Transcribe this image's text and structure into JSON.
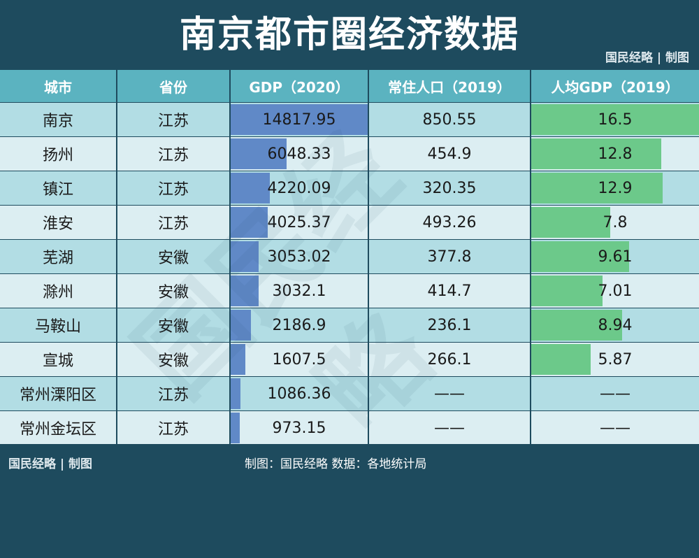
{
  "title": "南京都市圈经济数据",
  "tag": "国民经略 | 制图",
  "headers": [
    "城市",
    "省份",
    "GDP（2020）",
    "常住人口（2019）",
    "人均GDP（2019）"
  ],
  "footer_tag": "国民经略 | 制图",
  "source": "制图：国民经略 数据：各地统计局",
  "watermark": "国民经略",
  "colors": {
    "header_bg": "#1e4b5e",
    "col_header": "#5bb3c0",
    "gdp_bar": "#6089c7",
    "pc_bar": "#6cc98a",
    "row_a": "#b2dde4",
    "row_b": "#dceef2"
  },
  "chart_data": {
    "type": "table",
    "rows": [
      {
        "city": "南京",
        "province": "江苏",
        "gdp": 14817.95,
        "gdp_text": "14817.95",
        "pop": "850.55",
        "pc": 16.5,
        "pc_text": "16.5"
      },
      {
        "city": "扬州",
        "province": "江苏",
        "gdp": 6048.33,
        "gdp_text": "6048.33",
        "pop": "454.9",
        "pc": 12.8,
        "pc_text": "12.8"
      },
      {
        "city": "镇江",
        "province": "江苏",
        "gdp": 4220.09,
        "gdp_text": "4220.09",
        "pop": "320.35",
        "pc": 12.9,
        "pc_text": "12.9"
      },
      {
        "city": "淮安",
        "province": "江苏",
        "gdp": 4025.37,
        "gdp_text": "4025.37",
        "pop": "493.26",
        "pc": 7.8,
        "pc_text": "7.8"
      },
      {
        "city": "芜湖",
        "province": "安徽",
        "gdp": 3053.02,
        "gdp_text": "3053.02",
        "pop": "377.8",
        "pc": 9.61,
        "pc_text": "9.61"
      },
      {
        "city": "滁州",
        "province": "安徽",
        "gdp": 3032.1,
        "gdp_text": "3032.1",
        "pop": "414.7",
        "pc": 7.01,
        "pc_text": "7.01"
      },
      {
        "city": "马鞍山",
        "province": "安徽",
        "gdp": 2186.9,
        "gdp_text": "2186.9",
        "pop": "236.1",
        "pc": 8.94,
        "pc_text": "8.94"
      },
      {
        "city": "宣城",
        "province": "安徽",
        "gdp": 1607.5,
        "gdp_text": "1607.5",
        "pop": "266.1",
        "pc": 5.87,
        "pc_text": "5.87"
      },
      {
        "city": "常州溧阳区",
        "province": "江苏",
        "gdp": 1086.36,
        "gdp_text": "1086.36",
        "pop": "——",
        "pc": null,
        "pc_text": "——"
      },
      {
        "city": "常州金坛区",
        "province": "江苏",
        "gdp": 973.15,
        "gdp_text": "973.15",
        "pop": "——",
        "pc": null,
        "pc_text": "——"
      }
    ]
  }
}
